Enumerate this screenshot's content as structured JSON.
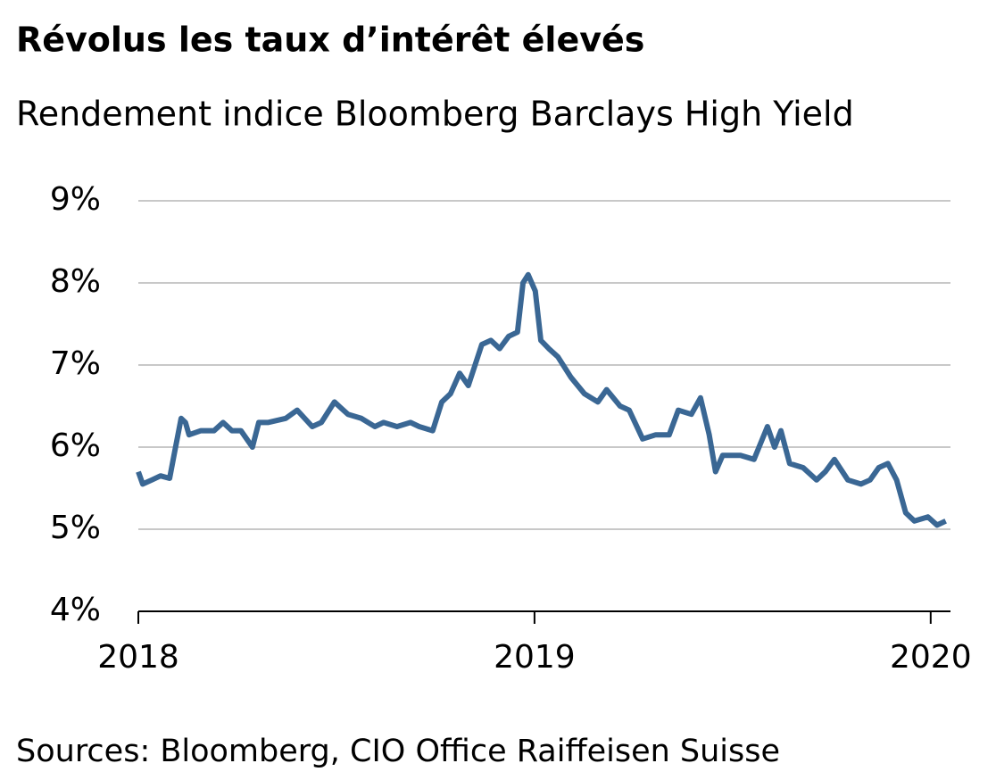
{
  "chart_data": {
    "type": "line",
    "title": "Révolus les taux d’intérêt élevés",
    "subtitle": "Rendement indice Bloomberg Barclays High Yield",
    "source": "Sources: Bloomberg, CIO Office Raiffeisen Suisse",
    "xlim": [
      2018,
      2020.05
    ],
    "xticks": [
      2018,
      2019,
      2020
    ],
    "ylim": [
      4,
      9
    ],
    "yticks": [
      {
        "value": 4,
        "label": "4%"
      },
      {
        "value": 5,
        "label": "5%"
      },
      {
        "value": 6,
        "label": "6%"
      },
      {
        "value": 7,
        "label": "7%"
      },
      {
        "value": 8,
        "label": "8%"
      },
      {
        "value": 9,
        "label": "9%"
      }
    ],
    "grid": true,
    "series": [
      {
        "color": "#3a6794",
        "x": [
          2018.0,
          2018.011,
          2018.034,
          2018.056,
          2018.079,
          2018.09,
          2018.108,
          2018.119,
          2018.128,
          2018.158,
          2018.191,
          2018.214,
          2018.236,
          2018.259,
          2018.288,
          2018.304,
          2018.327,
          2018.372,
          2018.401,
          2018.439,
          2018.462,
          2018.495,
          2018.529,
          2018.563,
          2018.597,
          2018.619,
          2018.653,
          2018.687,
          2018.709,
          2018.743,
          2018.766,
          2018.788,
          2018.811,
          2018.833,
          2018.867,
          2018.89,
          2018.912,
          2018.935,
          2018.957,
          2018.971,
          2018.984,
          2019.002,
          2019.016,
          2019.036,
          2019.059,
          2019.092,
          2019.126,
          2019.16,
          2019.182,
          2019.216,
          2019.239,
          2019.273,
          2019.306,
          2019.34,
          2019.363,
          2019.396,
          2019.419,
          2019.441,
          2019.457,
          2019.475,
          2019.52,
          2019.554,
          2019.588,
          2019.606,
          2019.622,
          2019.644,
          2019.678,
          2019.712,
          2019.734,
          2019.757,
          2019.791,
          2019.824,
          2019.847,
          2019.869,
          2019.892,
          2019.914,
          2019.937,
          2019.959,
          2019.993,
          2020.016,
          2020.038
        ],
        "values": [
          5.7,
          5.55,
          5.6,
          5.65,
          5.62,
          5.9,
          6.35,
          6.3,
          6.15,
          6.2,
          6.2,
          6.3,
          6.2,
          6.2,
          6.0,
          6.3,
          6.3,
          6.35,
          6.45,
          6.25,
          6.3,
          6.55,
          6.4,
          6.35,
          6.25,
          6.3,
          6.25,
          6.3,
          6.25,
          6.2,
          6.55,
          6.65,
          6.9,
          6.75,
          7.25,
          7.3,
          7.2,
          7.35,
          7.4,
          8.0,
          8.1,
          7.9,
          7.3,
          7.2,
          7.1,
          6.85,
          6.65,
          6.55,
          6.7,
          6.5,
          6.45,
          6.1,
          6.15,
          6.15,
          6.45,
          6.4,
          6.6,
          6.15,
          5.7,
          5.9,
          5.9,
          5.85,
          6.25,
          6.0,
          6.2,
          5.8,
          5.75,
          5.6,
          5.7,
          5.85,
          5.6,
          5.55,
          5.6,
          5.75,
          5.8,
          5.6,
          5.2,
          5.1,
          5.15,
          5.05,
          5.1
        ]
      }
    ]
  }
}
